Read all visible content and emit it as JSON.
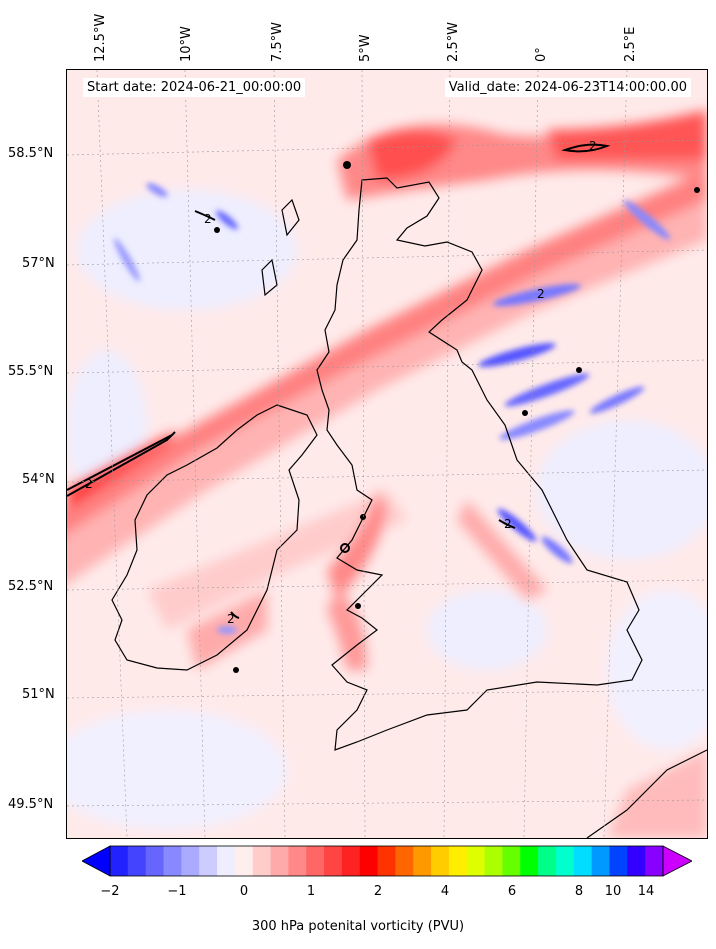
{
  "header": {
    "start_date": "Start date: 2024-06-21_00:00:00",
    "valid_date": "Valid_date: 2024-06-23T14:00:00.00"
  },
  "axes": {
    "lon_labels": [
      "12.5°W",
      "10°W",
      "7.5°W",
      "5°W",
      "2.5°W",
      "0°",
      "2.5°E"
    ],
    "lat_labels": [
      "58.5°N",
      "57°N",
      "55.5°N",
      "54°N",
      "52.5°N",
      "51°N",
      "49.5°N"
    ]
  },
  "contours": {
    "label": "2"
  },
  "colorbar": {
    "label": "300 hPa potenital vorticity (PVU)",
    "ticks": [
      "−2",
      "−1",
      "0",
      "1",
      "2",
      "4",
      "6",
      "8",
      "10",
      "14"
    ],
    "colors": [
      "#0000ff",
      "#2222ff",
      "#4444ff",
      "#6666ff",
      "#8888ff",
      "#aaaaff",
      "#ccccff",
      "#eeeeff",
      "#ffeeee",
      "#ffcccc",
      "#ffaaaa",
      "#ff8888",
      "#ff6666",
      "#ff4444",
      "#ff2222",
      "#ff0000",
      "#ff3300",
      "#ff6600",
      "#ff9900",
      "#ffcc00",
      "#ffee00",
      "#ddff00",
      "#aaff00",
      "#66ff00",
      "#00ff00",
      "#00ff88",
      "#00ffcc",
      "#00ddff",
      "#0099ff",
      "#0044ff",
      "#3300ff",
      "#8800ff",
      "#cc00ff"
    ]
  }
}
